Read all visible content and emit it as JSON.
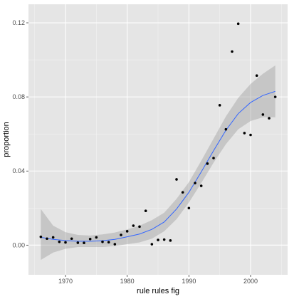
{
  "chart_data": {
    "type": "scatter",
    "title": "",
    "xlabel": "rule rules fig",
    "ylabel": "proportion",
    "xlim": [
      1964,
      2006
    ],
    "ylim": [
      -0.016,
      0.13
    ],
    "x_ticks": [
      1970,
      1980,
      1990,
      2000
    ],
    "x_tick_labels": [
      "1970",
      "1980",
      "1990",
      "2000"
    ],
    "y_ticks": [
      0.0,
      0.04,
      0.08,
      0.12
    ],
    "y_tick_labels": [
      "0.00",
      "0.04",
      "0.08",
      "0.12"
    ],
    "grid": true,
    "legend": "none",
    "colors": {
      "panel_background": "#e5e5e5",
      "grid_major": "#ffffff",
      "grid_minor": "#f2f2f2",
      "points": "#000000",
      "smooth_line": "#3366ff",
      "confidence_band": "#999999"
    },
    "points": [
      {
        "x": 1966,
        "y": 0.0045
      },
      {
        "x": 1967,
        "y": 0.0035
      },
      {
        "x": 1968,
        "y": 0.0042
      },
      {
        "x": 1969,
        "y": 0.0018
      },
      {
        "x": 1970,
        "y": 0.0015
      },
      {
        "x": 1971,
        "y": 0.0035
      },
      {
        "x": 1972,
        "y": 0.0013
      },
      {
        "x": 1973,
        "y": 0.0012
      },
      {
        "x": 1974,
        "y": 0.0033
      },
      {
        "x": 1975,
        "y": 0.0042
      },
      {
        "x": 1976,
        "y": 0.0018
      },
      {
        "x": 1977,
        "y": 0.0016
      },
      {
        "x": 1978,
        "y": 0.0005
      },
      {
        "x": 1979,
        "y": 0.0055
      },
      {
        "x": 1980,
        "y": 0.0075
      },
      {
        "x": 1981,
        "y": 0.0105
      },
      {
        "x": 1982,
        "y": 0.01
      },
      {
        "x": 1983,
        "y": 0.0185
      },
      {
        "x": 1984,
        "y": 0.0005
      },
      {
        "x": 1985,
        "y": 0.0028
      },
      {
        "x": 1986,
        "y": 0.003
      },
      {
        "x": 1987,
        "y": 0.0025
      },
      {
        "x": 1988,
        "y": 0.0355
      },
      {
        "x": 1989,
        "y": 0.0285
      },
      {
        "x": 1990,
        "y": 0.02
      },
      {
        "x": 1991,
        "y": 0.0335
      },
      {
        "x": 1992,
        "y": 0.032
      },
      {
        "x": 1993,
        "y": 0.044
      },
      {
        "x": 1994,
        "y": 0.047
      },
      {
        "x": 1995,
        "y": 0.0755
      },
      {
        "x": 1996,
        "y": 0.0625
      },
      {
        "x": 1997,
        "y": 0.1045
      },
      {
        "x": 1998,
        "y": 0.1195
      },
      {
        "x": 1999,
        "y": 0.0605
      },
      {
        "x": 2000,
        "y": 0.0595
      },
      {
        "x": 2001,
        "y": 0.0915
      },
      {
        "x": 2002,
        "y": 0.0705
      },
      {
        "x": 2003,
        "y": 0.0685
      },
      {
        "x": 2004,
        "y": 0.08
      }
    ],
    "smooth": [
      {
        "x": 1966,
        "y": 0.0042,
        "lo": -0.008,
        "hi": 0.0195
      },
      {
        "x": 1968,
        "y": 0.0031,
        "lo": -0.004,
        "hi": 0.0105
      },
      {
        "x": 1970,
        "y": 0.0025,
        "lo": -0.002,
        "hi": 0.007
      },
      {
        "x": 1972,
        "y": 0.0021,
        "lo": -0.001,
        "hi": 0.0055
      },
      {
        "x": 1974,
        "y": 0.0021,
        "lo": -0.001,
        "hi": 0.0052
      },
      {
        "x": 1976,
        "y": 0.0024,
        "lo": -0.001,
        "hi": 0.0058
      },
      {
        "x": 1978,
        "y": 0.0031,
        "lo": -0.0005,
        "hi": 0.0068
      },
      {
        "x": 1980,
        "y": 0.0045,
        "lo": 0.0005,
        "hi": 0.0085
      },
      {
        "x": 1982,
        "y": 0.006,
        "lo": 0.0015,
        "hi": 0.0105
      },
      {
        "x": 1984,
        "y": 0.0085,
        "lo": 0.0035,
        "hi": 0.0135
      },
      {
        "x": 1986,
        "y": 0.0125,
        "lo": 0.0075,
        "hi": 0.0175
      },
      {
        "x": 1988,
        "y": 0.0195,
        "lo": 0.014,
        "hi": 0.025
      },
      {
        "x": 1990,
        "y": 0.0285,
        "lo": 0.023,
        "hi": 0.034
      },
      {
        "x": 1992,
        "y": 0.0395,
        "lo": 0.0335,
        "hi": 0.0455
      },
      {
        "x": 1994,
        "y": 0.051,
        "lo": 0.0445,
        "hi": 0.0575
      },
      {
        "x": 1996,
        "y": 0.062,
        "lo": 0.0545,
        "hi": 0.0695
      },
      {
        "x": 1998,
        "y": 0.071,
        "lo": 0.0625,
        "hi": 0.0795
      },
      {
        "x": 2000,
        "y": 0.077,
        "lo": 0.067,
        "hi": 0.087
      },
      {
        "x": 2002,
        "y": 0.0808,
        "lo": 0.069,
        "hi": 0.0925
      },
      {
        "x": 2004,
        "y": 0.083,
        "lo": 0.069,
        "hi": 0.097
      }
    ]
  }
}
